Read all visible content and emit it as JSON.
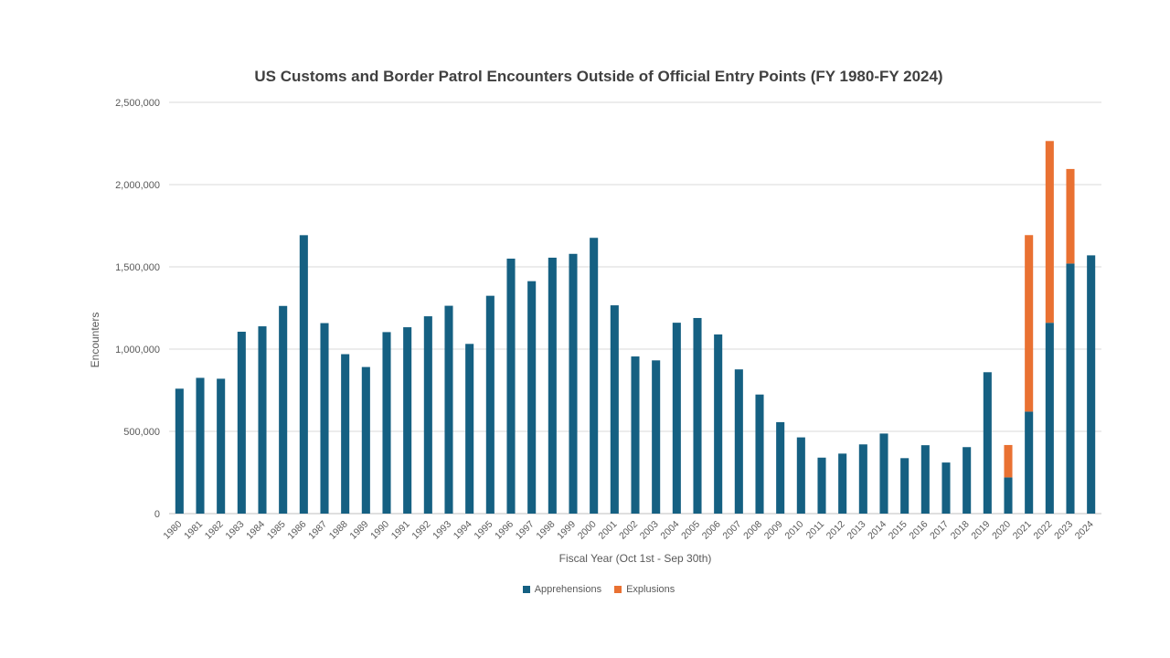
{
  "chart_data": {
    "type": "bar",
    "stacked": true,
    "title": "US Customs and Border Patrol Encounters Outside of Official Entry Points (FY 1980-FY 2024)",
    "xlabel": "Fiscal Year (Oct 1st - Sep 30th)",
    "ylabel": "Encounters",
    "ylim": [
      0,
      2500000
    ],
    "yticks": [
      0,
      500000,
      1000000,
      1500000,
      2000000,
      2500000
    ],
    "ytick_labels": [
      "0",
      "500,000",
      "1,000,000",
      "1,500,000",
      "2,000,000",
      "2,500,000"
    ],
    "grid": true,
    "legend_position": "bottom",
    "categories": [
      "1980",
      "1981",
      "1982",
      "1983",
      "1984",
      "1985",
      "1986",
      "1987",
      "1988",
      "1989",
      "1990",
      "1991",
      "1992",
      "1993",
      "1994",
      "1995",
      "1996",
      "1997",
      "1998",
      "1999",
      "2000",
      "2001",
      "2002",
      "2003",
      "2004",
      "2005",
      "2006",
      "2007",
      "2008",
      "2009",
      "2010",
      "2011",
      "2012",
      "2013",
      "2014",
      "2015",
      "2016",
      "2017",
      "2018",
      "2019",
      "2020",
      "2021",
      "2022",
      "2023",
      "2024"
    ],
    "series": [
      {
        "name": "Apprehensions",
        "color": "#156082",
        "values": [
          759420,
          825290,
          819920,
          1105670,
          1138566,
          1262435,
          1692544,
          1158030,
          969214,
          891147,
          1103353,
          1132933,
          1199560,
          1263490,
          1031668,
          1324202,
          1549876,
          1412953,
          1555776,
          1579010,
          1676438,
          1266214,
          955310,
          931557,
          1160395,
          1189075,
          1089092,
          876704,
          723825,
          556041,
          463382,
          340252,
          364768,
          420789,
          486651,
          337117,
          415816,
          310531,
          404142,
          859501,
          220000,
          620000,
          1160000,
          1520000,
          1570000
        ]
      },
      {
        "name": "Explusions",
        "color": "#E97132",
        "values": [
          0,
          0,
          0,
          0,
          0,
          0,
          0,
          0,
          0,
          0,
          0,
          0,
          0,
          0,
          0,
          0,
          0,
          0,
          0,
          0,
          0,
          0,
          0,
          0,
          0,
          0,
          0,
          0,
          0,
          0,
          0,
          0,
          0,
          0,
          0,
          0,
          0,
          0,
          0,
          0,
          197000,
          1073000,
          1105000,
          575000,
          0
        ]
      }
    ]
  }
}
